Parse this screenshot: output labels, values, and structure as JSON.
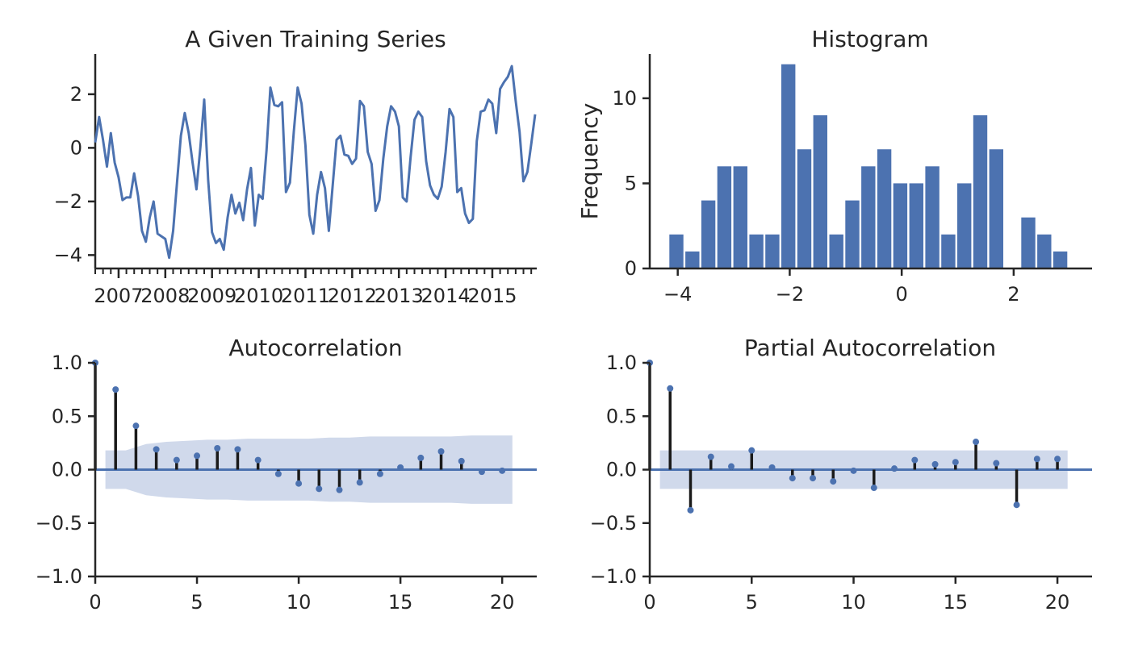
{
  "colors": {
    "series": "#4c72b0",
    "band": "#d0d9eb",
    "ink": "#262626",
    "stem": "#1a1a1a"
  },
  "chart_data": [
    {
      "panel": "series",
      "type": "line",
      "title": "A Given Training Series",
      "xlabel": "",
      "ylabel": "",
      "x_start": "2006-07",
      "x_end": "2015-12",
      "xticks": [
        "2007",
        "2008",
        "2009",
        "2010",
        "2011",
        "2012",
        "2013",
        "2014",
        "2015"
      ],
      "yticks": [
        "−4",
        "−2",
        "0",
        "2"
      ],
      "ylim": [
        -4.5,
        3.5
      ],
      "values": [
        0.2,
        1.15,
        0.3,
        -0.7,
        0.55,
        -0.55,
        -1.1,
        -1.95,
        -1.85,
        -1.85,
        -0.95,
        -1.8,
        -3.1,
        -3.5,
        -2.6,
        -2.0,
        -3.2,
        -3.3,
        -3.4,
        -4.1,
        -3.1,
        -1.3,
        0.45,
        1.3,
        0.55,
        -0.55,
        -1.55,
        0.0,
        1.8,
        -1.2,
        -3.15,
        -3.55,
        -3.4,
        -3.8,
        -2.6,
        -1.75,
        -2.45,
        -2.05,
        -2.7,
        -1.55,
        -0.75,
        -2.9,
        -1.75,
        -1.9,
        -0.1,
        2.25,
        1.6,
        1.55,
        1.7,
        -1.65,
        -1.3,
        0.6,
        2.25,
        1.65,
        0.1,
        -2.5,
        -3.2,
        -1.75,
        -0.9,
        -1.5,
        -3.1,
        -1.4,
        0.3,
        0.45,
        -0.25,
        -0.3,
        -0.6,
        -0.4,
        1.75,
        1.55,
        -0.15,
        -0.6,
        -2.35,
        -1.95,
        -0.4,
        0.8,
        1.55,
        1.35,
        0.8,
        -1.85,
        -2.0,
        -0.35,
        1.05,
        1.35,
        1.15,
        -0.5,
        -1.4,
        -1.75,
        -1.9,
        -1.45,
        -0.15,
        1.45,
        1.15,
        -1.65,
        -1.5,
        -2.45,
        -2.8,
        -2.65,
        0.25,
        1.35,
        1.4,
        1.8,
        1.65,
        0.55,
        2.2,
        2.45,
        2.65,
        3.05,
        1.75,
        0.6,
        -1.25,
        -0.9,
        0.15,
        1.25
      ]
    },
    {
      "panel": "hist",
      "type": "bar",
      "title": "Histogram",
      "xlabel": "",
      "ylabel": "Frequency",
      "bin_start": -4.15,
      "bin_width": 0.2857,
      "bar_fraction": 0.88,
      "values": [
        2,
        1,
        4,
        6,
        6,
        2,
        2,
        12,
        7,
        9,
        2,
        4,
        6,
        7,
        5,
        5,
        6,
        2,
        5,
        9,
        7,
        0,
        3,
        2,
        1
      ],
      "xlim": [
        -4.5,
        3.4
      ],
      "ylim": [
        0,
        12.6
      ],
      "xticks": [
        {
          "v": -4,
          "label": "−4"
        },
        {
          "v": -2,
          "label": "−2"
        },
        {
          "v": 0,
          "label": "0"
        },
        {
          "v": 2,
          "label": "2"
        }
      ],
      "yticks": [
        {
          "v": 0,
          "label": "0"
        },
        {
          "v": 5,
          "label": "5"
        },
        {
          "v": 10,
          "label": "10"
        }
      ]
    },
    {
      "panel": "acf",
      "type": "stem",
      "title": "Autocorrelation",
      "xlabel": "",
      "ylabel": "",
      "lags": [
        0,
        1,
        2,
        3,
        4,
        5,
        6,
        7,
        8,
        9,
        10,
        11,
        12,
        13,
        14,
        15,
        16,
        17,
        18,
        19,
        20
      ],
      "values": [
        1.0,
        0.75,
        0.41,
        0.19,
        0.09,
        0.13,
        0.2,
        0.19,
        0.09,
        -0.04,
        -0.13,
        -0.18,
        -0.19,
        -0.12,
        -0.04,
        0.02,
        0.11,
        0.17,
        0.08,
        -0.02,
        -0.01
      ],
      "conf": [
        0.18,
        0.18,
        0.24,
        0.26,
        0.27,
        0.28,
        0.28,
        0.29,
        0.29,
        0.29,
        0.29,
        0.3,
        0.3,
        0.31,
        0.31,
        0.31,
        0.31,
        0.31,
        0.32,
        0.32,
        0.32
      ],
      "conf_range": [
        0.5,
        20.5
      ],
      "xlim": [
        0,
        21.7
      ],
      "ylim": [
        -1.0,
        1.0
      ],
      "xticks": [
        {
          "v": 0,
          "label": "0"
        },
        {
          "v": 5,
          "label": "5"
        },
        {
          "v": 10,
          "label": "10"
        },
        {
          "v": 15,
          "label": "15"
        },
        {
          "v": 20,
          "label": "20"
        }
      ],
      "yticks": [
        {
          "v": 1.0,
          "label": "1.0"
        },
        {
          "v": 0.5,
          "label": "0.5"
        },
        {
          "v": 0.0,
          "label": "0.0"
        },
        {
          "v": -0.5,
          "label": "−0.5"
        },
        {
          "v": -1.0,
          "label": "−1.0"
        }
      ]
    },
    {
      "panel": "pacf",
      "type": "stem",
      "title": "Partial Autocorrelation",
      "xlabel": "",
      "ylabel": "",
      "lags": [
        0,
        1,
        2,
        3,
        4,
        5,
        6,
        7,
        8,
        9,
        10,
        11,
        12,
        13,
        14,
        15,
        16,
        17,
        18,
        19,
        20
      ],
      "values": [
        1.0,
        0.76,
        -0.38,
        0.12,
        0.03,
        0.18,
        0.02,
        -0.08,
        -0.08,
        -0.11,
        -0.01,
        -0.17,
        0.01,
        0.09,
        0.05,
        0.07,
        0.26,
        0.06,
        -0.33,
        0.1,
        0.1
      ],
      "conf_const": 0.18,
      "conf_range": [
        0.5,
        20.5
      ],
      "xlim": [
        0,
        21.7
      ],
      "ylim": [
        -1.0,
        1.0
      ],
      "xticks": [
        {
          "v": 0,
          "label": "0"
        },
        {
          "v": 5,
          "label": "5"
        },
        {
          "v": 10,
          "label": "10"
        },
        {
          "v": 15,
          "label": "15"
        },
        {
          "v": 20,
          "label": "20"
        }
      ],
      "yticks": [
        {
          "v": 1.0,
          "label": "1.0"
        },
        {
          "v": 0.5,
          "label": "0.5"
        },
        {
          "v": 0.0,
          "label": "0.0"
        },
        {
          "v": -0.5,
          "label": "−0.5"
        },
        {
          "v": -1.0,
          "label": "−1.0"
        }
      ]
    }
  ]
}
